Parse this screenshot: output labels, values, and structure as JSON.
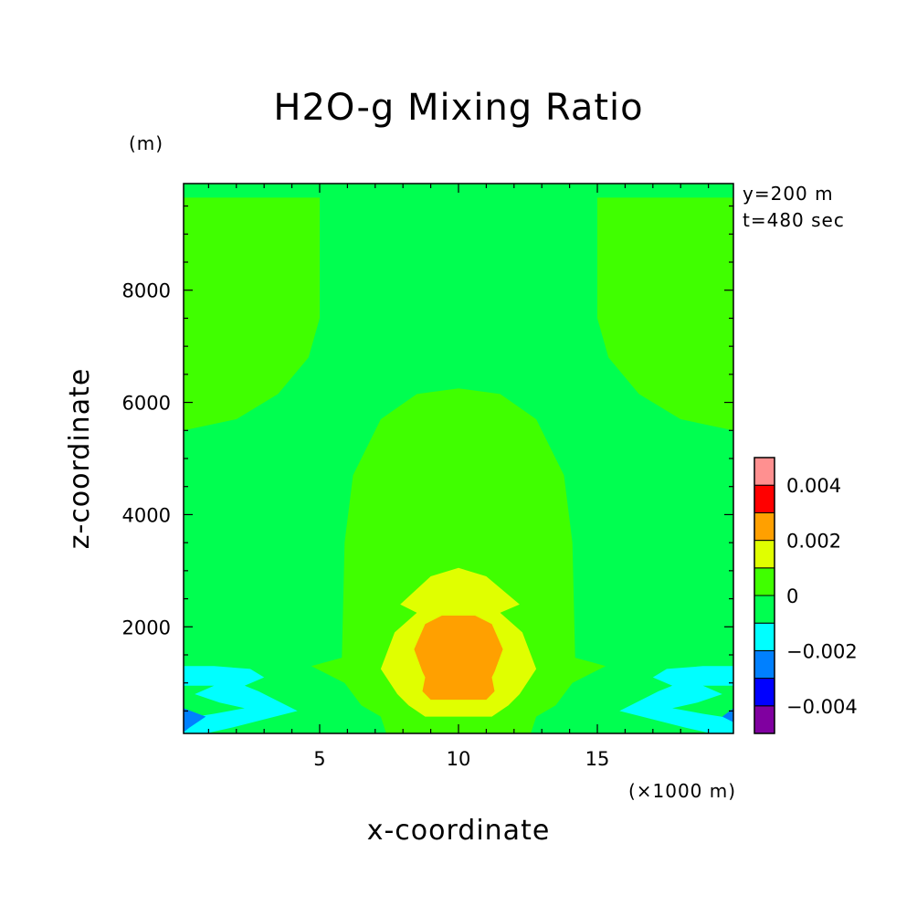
{
  "chart_data": {
    "type": "heatmap",
    "title": "H2O-g Mixing Ratio",
    "xlabel": "x-coordinate",
    "ylabel": "z-coordinate",
    "x_unit": "(×1000 m)",
    "y_unit": "(m)",
    "annotations": [
      "y=200 m",
      "t=480 sec"
    ],
    "xlim": [
      0.1,
      19.9
    ],
    "ylim": [
      100,
      9900
    ],
    "x_ticks": [
      5,
      10,
      15
    ],
    "y_ticks": [
      2000,
      4000,
      6000,
      8000
    ],
    "colorbar": {
      "levels": [
        -0.005,
        -0.004,
        -0.003,
        -0.002,
        -0.001,
        0,
        0.001,
        0.002,
        0.003,
        0.004,
        0.005
      ],
      "colors": [
        "#8000a0",
        "#0000ff",
        "#0080ff",
        "#00ffff",
        "#00ff50",
        "#40ff00",
        "#e0ff00",
        "#ffa000",
        "#ff0000",
        "#ff9090"
      ],
      "tick_labels": [
        "-0.004",
        "-0.002",
        "0",
        "0.002",
        "0.004"
      ],
      "tick_values": [
        -0.004,
        -0.002,
        0,
        0.002,
        0.004
      ]
    },
    "background_level": "#00ff50",
    "regions": [
      {
        "level": "#40ff00",
        "points": [
          [
            0.1,
            9650
          ],
          [
            5.0,
            9650
          ],
          [
            5.0,
            7500
          ],
          [
            4.6,
            6800
          ],
          [
            3.5,
            6150
          ],
          [
            2.0,
            5700
          ],
          [
            0.1,
            5500
          ]
        ]
      },
      {
        "level": "#40ff00",
        "points": [
          [
            19.9,
            9650
          ],
          [
            15.0,
            9650
          ],
          [
            15.0,
            7500
          ],
          [
            15.4,
            6800
          ],
          [
            16.5,
            6150
          ],
          [
            18.0,
            5700
          ],
          [
            19.9,
            5500
          ]
        ]
      },
      {
        "level": "#40ff00",
        "points": [
          [
            5.8,
            1450
          ],
          [
            5.9,
            3500
          ],
          [
            6.2,
            4700
          ],
          [
            7.2,
            5700
          ],
          [
            8.5,
            6150
          ],
          [
            10.0,
            6250
          ],
          [
            11.5,
            6150
          ],
          [
            12.8,
            5700
          ],
          [
            13.8,
            4700
          ],
          [
            14.1,
            3500
          ],
          [
            14.2,
            1450
          ],
          [
            15.3,
            1300
          ],
          [
            14.1,
            1000
          ],
          [
            13.5,
            600
          ],
          [
            12.8,
            400
          ],
          [
            12.6,
            100
          ],
          [
            7.4,
            100
          ],
          [
            7.2,
            400
          ],
          [
            6.5,
            600
          ],
          [
            5.9,
            1000
          ],
          [
            4.7,
            1300
          ]
        ]
      },
      {
        "level": "#e0ff00",
        "points": [
          [
            7.9,
            2400
          ],
          [
            9.0,
            2900
          ],
          [
            10.0,
            3050
          ],
          [
            11.0,
            2900
          ],
          [
            12.2,
            2400
          ],
          [
            11.5,
            2250
          ],
          [
            12.3,
            1900
          ],
          [
            12.8,
            1250
          ],
          [
            12.2,
            800
          ],
          [
            11.8,
            600
          ],
          [
            11.2,
            400
          ],
          [
            8.8,
            400
          ],
          [
            8.2,
            600
          ],
          [
            7.8,
            800
          ],
          [
            7.2,
            1250
          ],
          [
            7.7,
            1900
          ],
          [
            8.5,
            2250
          ]
        ]
      },
      {
        "level": "#ffa000",
        "points": [
          [
            8.8,
            2050
          ],
          [
            9.4,
            2200
          ],
          [
            10.6,
            2200
          ],
          [
            11.2,
            2050
          ],
          [
            11.6,
            1600
          ],
          [
            11.3,
            1200
          ],
          [
            11.2,
            1100
          ],
          [
            11.3,
            850
          ],
          [
            11.0,
            700
          ],
          [
            9.0,
            700
          ],
          [
            8.7,
            850
          ],
          [
            8.8,
            1100
          ],
          [
            8.7,
            1200
          ],
          [
            8.4,
            1600
          ]
        ]
      },
      {
        "level": "#00ffff",
        "points": [
          [
            0.1,
            1300
          ],
          [
            1.2,
            1300
          ],
          [
            2.5,
            1250
          ],
          [
            3.0,
            1100
          ],
          [
            2.3,
            950
          ],
          [
            2.8,
            850
          ],
          [
            4.2,
            500
          ],
          [
            3.0,
            350
          ],
          [
            1.8,
            200
          ],
          [
            0.9,
            100
          ],
          [
            0.1,
            100
          ]
        ]
      },
      {
        "level": "#00ff50",
        "points": [
          [
            0.1,
            950
          ],
          [
            1.2,
            950
          ],
          [
            0.5,
            800
          ],
          [
            1.4,
            650
          ],
          [
            2.3,
            550
          ],
          [
            1.2,
            450
          ],
          [
            0.3,
            380
          ],
          [
            0.1,
            380
          ]
        ]
      },
      {
        "level": "#0080ff",
        "points": [
          [
            0.1,
            550
          ],
          [
            0.9,
            400
          ],
          [
            0.3,
            200
          ],
          [
            0.1,
            120
          ]
        ]
      },
      {
        "level": "#00ffff",
        "points": [
          [
            19.9,
            1300
          ],
          [
            18.8,
            1300
          ],
          [
            17.5,
            1250
          ],
          [
            17.0,
            1100
          ],
          [
            17.7,
            950
          ],
          [
            17.2,
            850
          ],
          [
            15.8,
            500
          ],
          [
            17.0,
            350
          ],
          [
            18.2,
            200
          ],
          [
            19.1,
            100
          ],
          [
            19.9,
            100
          ]
        ]
      },
      {
        "level": "#00ff50",
        "points": [
          [
            19.9,
            950
          ],
          [
            18.8,
            950
          ],
          [
            19.5,
            800
          ],
          [
            18.6,
            650
          ],
          [
            17.7,
            550
          ],
          [
            18.8,
            450
          ],
          [
            19.7,
            380
          ],
          [
            19.9,
            380
          ]
        ]
      },
      {
        "level": "#0080ff",
        "points": [
          [
            19.9,
            550
          ],
          [
            19.5,
            400
          ],
          [
            19.9,
            300
          ]
        ]
      }
    ]
  }
}
